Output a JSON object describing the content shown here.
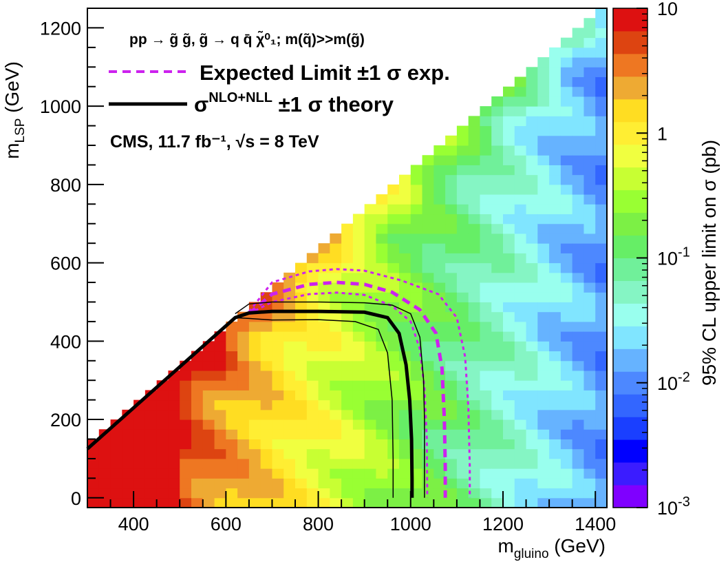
{
  "chart_data": {
    "type": "heatmap",
    "title": "",
    "xlabel": {
      "main": "m",
      "sub": "gluino",
      "unit": " (GeV)"
    },
    "ylabel": {
      "main": "m",
      "sub": "LSP",
      "unit": " (GeV)"
    },
    "zlabel": "95% CL upper limit on σ (pb)",
    "xlim": [
      300,
      1425
    ],
    "ylim": [
      -25,
      1250
    ],
    "zlim": [
      0.001,
      10
    ],
    "z_scale": "log",
    "x_ticks": [
      "400",
      "600",
      "800",
      "1000",
      "1200",
      "1400"
    ],
    "y_ticks": [
      "0",
      "200",
      "400",
      "600",
      "800",
      "1000",
      "1200"
    ],
    "z_ticks": [
      {
        "base": "10",
        "exp": ""
      },
      {
        "base": "1",
        "exp": ""
      },
      {
        "base": "10",
        "exp": "-1"
      },
      {
        "base": "10",
        "exp": "-2"
      },
      {
        "base": "10",
        "exp": "-3"
      }
    ],
    "z_tick_values": [
      10,
      1,
      0.1,
      0.01,
      0.001
    ],
    "palette": [
      "#7f00ff",
      "#3b1cff",
      "#0000ff",
      "#1a3fff",
      "#3366ff",
      "#4d88ff",
      "#66b3ff",
      "#80e5ff",
      "#99ffee",
      "#85f5c4",
      "#70f09a",
      "#66ee66",
      "#7cf045",
      "#99ff33",
      "#c8ff33",
      "#f0ff40",
      "#ffee33",
      "#ffdd22",
      "#eeaa33",
      "#ee7722",
      "#dd4411",
      "#dd1111"
    ],
    "grid": false,
    "legend": [
      {
        "name": "Expected Limit ±1 σ exp.",
        "style": "dashed",
        "color": "#cc22ee"
      },
      {
        "name": "σNLO+NLL ±1 σ theory",
        "style": "solid",
        "color": "#000000"
      }
    ],
    "annotations": {
      "process": "pp → g̃ g̃, g̃ → q q̄ χ̃⁰₁; m(q̃)>>m(g̃)",
      "expected_label": "Expected Limit ±1 σ exp.",
      "theory_label_prefix": "σ",
      "theory_label_sup": "NLO+NLL",
      "theory_label_suffix": " ±1 σ theory",
      "cms_label": "CMS, 11.7 fb⁻¹, √s = 8 TeV"
    },
    "contours": {
      "observed": [
        [
          300,
          125
        ],
        [
          620,
          460
        ],
        [
          650,
          472
        ],
        [
          700,
          476
        ],
        [
          800,
          476
        ],
        [
          900,
          474
        ],
        [
          950,
          460
        ],
        [
          975,
          420
        ],
        [
          990,
          340
        ],
        [
          998,
          250
        ],
        [
          1002,
          150
        ],
        [
          1003,
          50
        ],
        [
          1003,
          0
        ]
      ],
      "observed_plus": [
        [
          620,
          470
        ],
        [
          650,
          495
        ],
        [
          700,
          500
        ],
        [
          800,
          500
        ],
        [
          900,
          498
        ],
        [
          960,
          492
        ],
        [
          1000,
          470
        ],
        [
          1020,
          410
        ],
        [
          1028,
          300
        ],
        [
          1030,
          200
        ],
        [
          1030,
          80
        ],
        [
          1030,
          0
        ]
      ],
      "observed_minus": [
        [
          620,
          460
        ],
        [
          650,
          458
        ],
        [
          700,
          454
        ],
        [
          800,
          455
        ],
        [
          880,
          450
        ],
        [
          930,
          430
        ],
        [
          950,
          370
        ],
        [
          960,
          250
        ],
        [
          962,
          100
        ],
        [
          962,
          0
        ]
      ],
      "expected": [
        [
          650,
          470
        ],
        [
          700,
          520
        ],
        [
          780,
          545
        ],
        [
          840,
          550
        ],
        [
          900,
          545
        ],
        [
          960,
          525
        ],
        [
          1020,
          480
        ],
        [
          1055,
          420
        ],
        [
          1068,
          330
        ],
        [
          1073,
          200
        ],
        [
          1075,
          80
        ],
        [
          1075,
          0
        ]
      ],
      "expected_plus": [
        [
          650,
          475
        ],
        [
          700,
          550
        ],
        [
          780,
          578
        ],
        [
          840,
          584
        ],
        [
          900,
          580
        ],
        [
          980,
          555
        ],
        [
          1060,
          520
        ],
        [
          1100,
          460
        ],
        [
          1118,
          360
        ],
        [
          1125,
          230
        ],
        [
          1128,
          80
        ],
        [
          1128,
          0
        ]
      ],
      "expected_minus": [
        [
          650,
          470
        ],
        [
          700,
          500
        ],
        [
          780,
          520
        ],
        [
          840,
          524
        ],
        [
          900,
          518
        ],
        [
          960,
          490
        ],
        [
          1000,
          450
        ],
        [
          1020,
          380
        ],
        [
          1030,
          280
        ],
        [
          1035,
          150
        ],
        [
          1036,
          0
        ]
      ]
    }
  }
}
